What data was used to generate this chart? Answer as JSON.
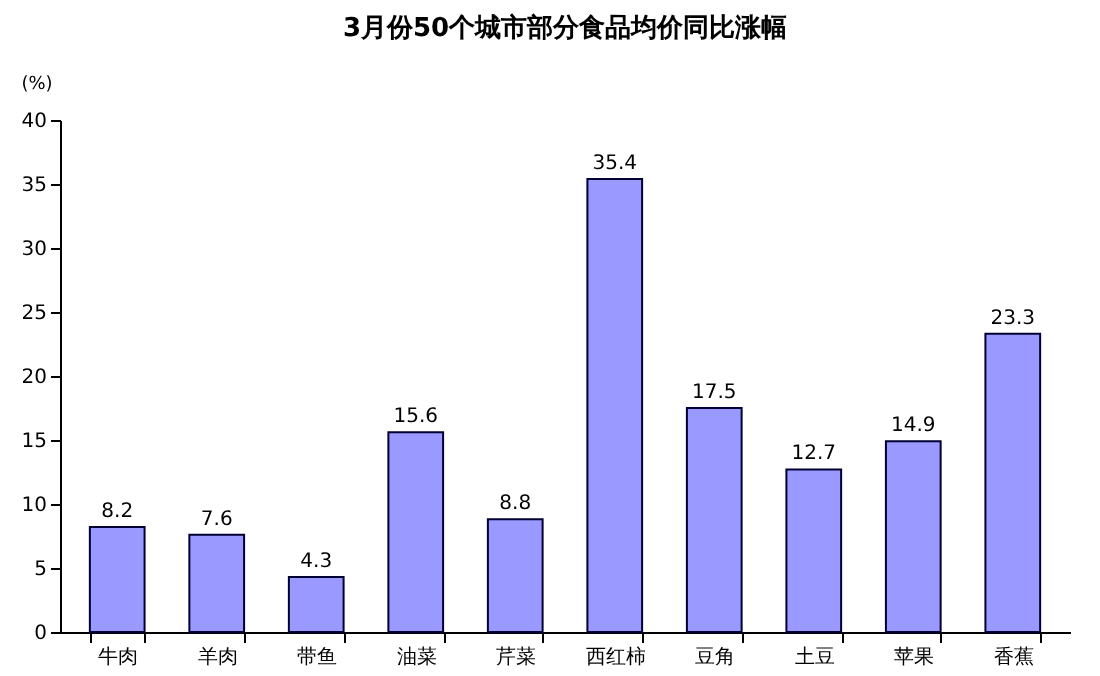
{
  "chart_data": {
    "type": "bar",
    "title": "3月份50个城市部分食品均价同比涨幅",
    "ylabel": "(%)",
    "categories": [
      "牛肉",
      "羊肉",
      "带鱼",
      "油菜",
      "芹菜",
      "西红柿",
      "豆角",
      "土豆",
      "苹果",
      "香蕉"
    ],
    "values": [
      8.2,
      7.6,
      4.3,
      15.6,
      8.8,
      35.4,
      17.5,
      12.7,
      14.9,
      23.3
    ],
    "color": "#9999ff",
    "ylim": [
      0,
      40
    ],
    "yticks": [
      0,
      5,
      10,
      15,
      20,
      25,
      30,
      35,
      40
    ],
    "grid": false,
    "data_labels": true
  }
}
